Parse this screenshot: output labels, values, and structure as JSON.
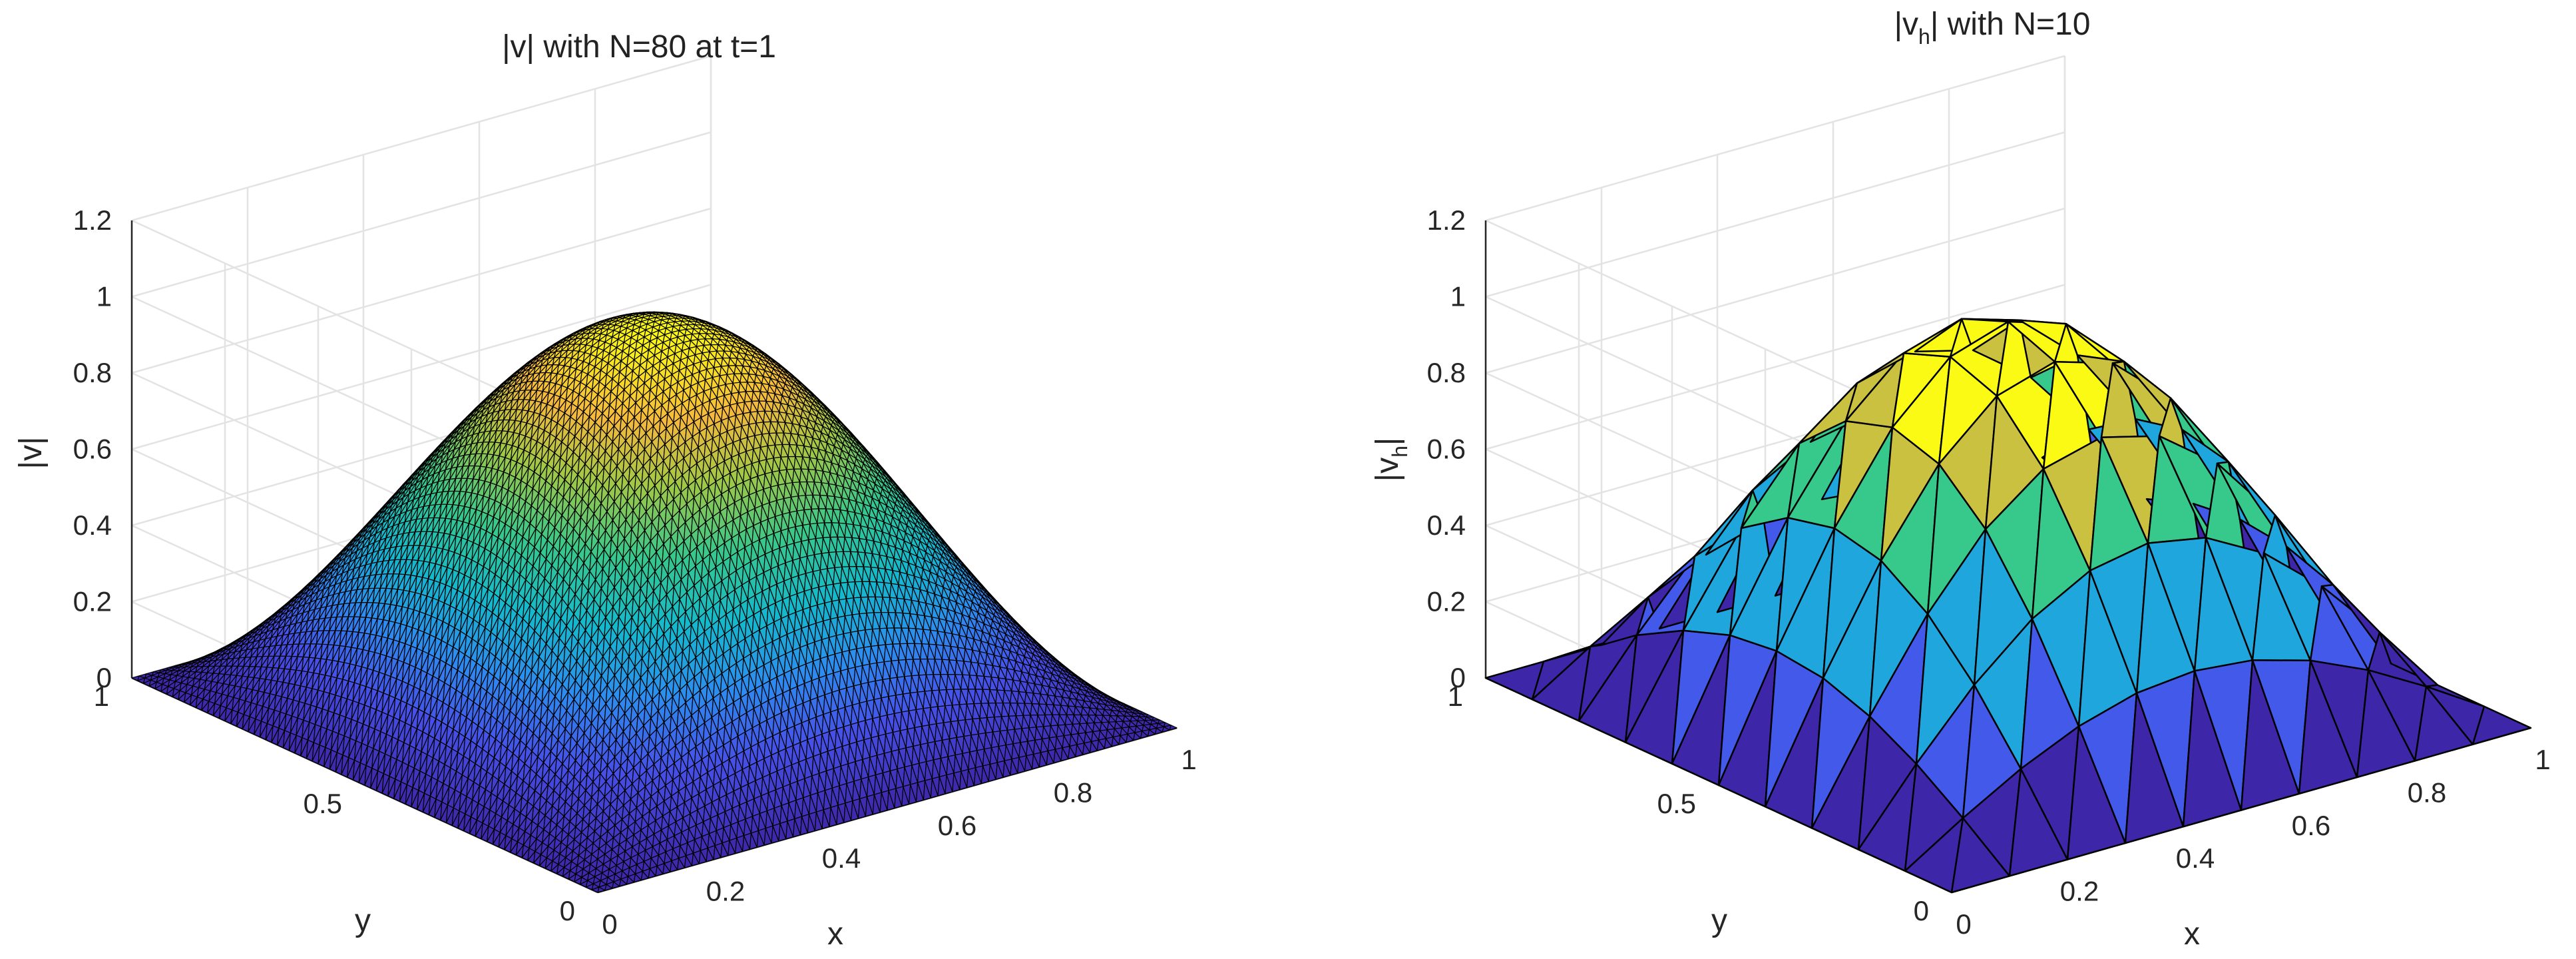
{
  "chart_data": [
    {
      "type": "surface",
      "title": "|v| with N=80 at t=1",
      "xlabel": "x",
      "ylabel": "y",
      "zlabel": "|v|",
      "xlim": [
        0,
        1
      ],
      "ylim": [
        0,
        1
      ],
      "zlim": [
        0,
        1.2
      ],
      "x_ticks": [
        "0",
        "0.2",
        "0.4",
        "0.6",
        "0.8",
        "1"
      ],
      "y_ticks": [
        "0",
        "0.5",
        "1"
      ],
      "z_ticks": [
        "0",
        "0.2",
        "0.4",
        "0.6",
        "0.8",
        "1",
        "1.2"
      ],
      "mesh_N": 80,
      "function": "sin(pi*x)*sin(pi*y)",
      "peak": {
        "x": 0.5,
        "y": 0.5,
        "z": 1.0
      },
      "grid": true,
      "colormap": "parula",
      "edge_color": "#000000"
    },
    {
      "type": "surface",
      "title_main": "|v",
      "title_sub": "h",
      "title_rest": "| with N=10",
      "xlabel": "x",
      "ylabel": "y",
      "zlabel_main": "|v",
      "zlabel_sub": "h",
      "zlabel_rest": "|",
      "xlim": [
        0,
        1
      ],
      "ylim": [
        0,
        1
      ],
      "zlim": [
        0,
        1.2
      ],
      "x_ticks": [
        "0",
        "0.2",
        "0.4",
        "0.6",
        "0.8",
        "1"
      ],
      "y_ticks": [
        "0",
        "0.5",
        "1"
      ],
      "z_ticks": [
        "0",
        "0.2",
        "0.4",
        "0.6",
        "0.8",
        "1",
        "1.2"
      ],
      "mesh_N": 10,
      "function": "sin(pi*x)*sin(pi*y)",
      "peak": {
        "x": 0.5,
        "y": 0.5,
        "z": 1.0
      },
      "grid": true,
      "colormap": "parula",
      "color_levels": 6,
      "edge_color": "#000000"
    }
  ],
  "colors": {
    "grid": "#e3e3e3",
    "axis": "#262626",
    "text": "#262626"
  }
}
